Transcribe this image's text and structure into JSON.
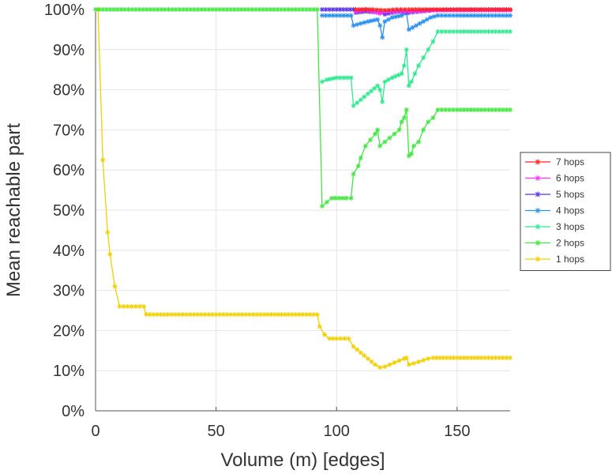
{
  "chart_data": {
    "type": "line",
    "xlabel": "Volume (m) [edges]",
    "ylabel": "Mean reachable part",
    "xlim": [
      0,
      172
    ],
    "ylim": [
      0,
      100
    ],
    "x_ticks": [
      "0",
      "50",
      "100",
      "150"
    ],
    "y_ticks": [
      "0%",
      "10%",
      "20%",
      "30%",
      "40%",
      "50%",
      "60%",
      "70%",
      "80%",
      "90%",
      "100%"
    ],
    "grid": true,
    "legend_position": "right",
    "series": [
      {
        "name": "7 hops",
        "color": "#ff2020",
        "points": [
          [
            108,
            100
          ],
          [
            115,
            100
          ],
          [
            120,
            99.8
          ],
          [
            125,
            100
          ],
          [
            130,
            100
          ],
          [
            140,
            100
          ],
          [
            150,
            100
          ],
          [
            160,
            100
          ],
          [
            172,
            100
          ]
        ]
      },
      {
        "name": "6 hops",
        "color": "#ff30ff",
        "points": [
          [
            108,
            99.5
          ],
          [
            112,
            100
          ],
          [
            118,
            99
          ],
          [
            120,
            99.5
          ],
          [
            125,
            99.5
          ],
          [
            130,
            99.5
          ],
          [
            140,
            99.8
          ],
          [
            150,
            99.8
          ],
          [
            160,
            99.8
          ],
          [
            172,
            99.8
          ]
        ]
      },
      {
        "name": "5 hops",
        "color": "#5a30e8",
        "points": [
          [
            94,
            100
          ],
          [
            100,
            100
          ],
          [
            107,
            100
          ],
          [
            108,
            99.2
          ],
          [
            112,
            99.5
          ],
          [
            118,
            99.2
          ],
          [
            120,
            98.8
          ],
          [
            123,
            99.2
          ],
          [
            126,
            99.5
          ],
          [
            130,
            99.2
          ],
          [
            135,
            99.5
          ],
          [
            140,
            99.8
          ],
          [
            150,
            100
          ],
          [
            160,
            100
          ],
          [
            172,
            100
          ]
        ]
      },
      {
        "name": "4 hops",
        "color": "#2a90f0",
        "points": [
          [
            94,
            98.5
          ],
          [
            100,
            98.5
          ],
          [
            106,
            98.5
          ],
          [
            107,
            96
          ],
          [
            110,
            96.5
          ],
          [
            113,
            97
          ],
          [
            117,
            97.5
          ],
          [
            118,
            96
          ],
          [
            119,
            93
          ],
          [
            120,
            97
          ],
          [
            123,
            98
          ],
          [
            127,
            98.5
          ],
          [
            129,
            99
          ],
          [
            130,
            95
          ],
          [
            133,
            96
          ],
          [
            136,
            97
          ],
          [
            139,
            98
          ],
          [
            142,
            98.5
          ],
          [
            150,
            98.5
          ],
          [
            160,
            98.5
          ],
          [
            172,
            98.5
          ]
        ]
      },
      {
        "name": "3 hops",
        "color": "#30e890",
        "points": [
          [
            94,
            82
          ],
          [
            96,
            82.5
          ],
          [
            100,
            83
          ],
          [
            106,
            83
          ],
          [
            107,
            76
          ],
          [
            110,
            77.5
          ],
          [
            113,
            79
          ],
          [
            117,
            81
          ],
          [
            118,
            80
          ],
          [
            119,
            77
          ],
          [
            120,
            82
          ],
          [
            123,
            83
          ],
          [
            127,
            84
          ],
          [
            128,
            86
          ],
          [
            129,
            90
          ],
          [
            130,
            81
          ],
          [
            131,
            82
          ],
          [
            134,
            86
          ],
          [
            136,
            88
          ],
          [
            138,
            90
          ],
          [
            140,
            92
          ],
          [
            142,
            94.5
          ],
          [
            150,
            94.5
          ],
          [
            160,
            94.5
          ],
          [
            172,
            94.5
          ]
        ]
      },
      {
        "name": "2 hops",
        "color": "#40e840",
        "points": [
          [
            0,
            100
          ],
          [
            50,
            100
          ],
          [
            92,
            100
          ],
          [
            94,
            51
          ],
          [
            96,
            52
          ],
          [
            98,
            53
          ],
          [
            104,
            53
          ],
          [
            106,
            53
          ],
          [
            107,
            59
          ],
          [
            109,
            61
          ],
          [
            110,
            63
          ],
          [
            112,
            66
          ],
          [
            114,
            67.5
          ],
          [
            116,
            69
          ],
          [
            117,
            70
          ],
          [
            118,
            66
          ],
          [
            120,
            67
          ],
          [
            122,
            68
          ],
          [
            124,
            69
          ],
          [
            126,
            70
          ],
          [
            127,
            72
          ],
          [
            128,
            73
          ],
          [
            129,
            75
          ],
          [
            130,
            63.5
          ],
          [
            131,
            64
          ],
          [
            132,
            66
          ],
          [
            134,
            67
          ],
          [
            136,
            70
          ],
          [
            138,
            72
          ],
          [
            140,
            73
          ],
          [
            142,
            75
          ],
          [
            150,
            75
          ],
          [
            160,
            75
          ],
          [
            172,
            75
          ]
        ]
      },
      {
        "name": "1 hops",
        "color": "#f0d000",
        "points": [
          [
            1,
            100
          ],
          [
            3,
            62.5
          ],
          [
            5,
            44.5
          ],
          [
            6,
            39
          ],
          [
            8,
            31
          ],
          [
            10,
            26
          ],
          [
            15,
            26
          ],
          [
            20,
            26
          ],
          [
            21,
            24
          ],
          [
            30,
            24
          ],
          [
            50,
            24
          ],
          [
            70,
            24
          ],
          [
            80,
            24
          ],
          [
            92,
            24
          ],
          [
            93,
            21
          ],
          [
            95,
            19
          ],
          [
            97,
            18
          ],
          [
            100,
            18
          ],
          [
            105,
            18
          ],
          [
            107,
            16
          ],
          [
            110,
            14.5
          ],
          [
            113,
            13
          ],
          [
            116,
            11.5
          ],
          [
            118,
            10.8
          ],
          [
            120,
            11
          ],
          [
            122,
            11.5
          ],
          [
            124,
            12
          ],
          [
            126,
            12.5
          ],
          [
            128,
            13
          ],
          [
            129,
            13.2
          ],
          [
            130,
            11.5
          ],
          [
            132,
            11.8
          ],
          [
            134,
            12.2
          ],
          [
            136,
            12.6
          ],
          [
            138,
            13
          ],
          [
            140,
            13.2
          ],
          [
            150,
            13.2
          ],
          [
            160,
            13.2
          ],
          [
            172,
            13.2
          ]
        ]
      }
    ]
  }
}
